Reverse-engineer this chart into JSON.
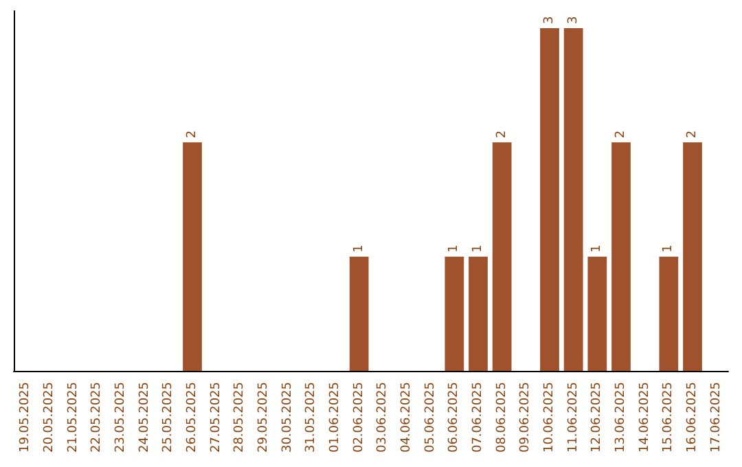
{
  "chart_data": {
    "type": "bar",
    "categories": [
      "19.05.2025",
      "20.05.2025",
      "21.05.2025",
      "22.05.2025",
      "23.05.2025",
      "24.05.2025",
      "25.05.2025",
      "26.05.2025",
      "27.05.2025",
      "28.05.2025",
      "29.05.2025",
      "30.05.2025",
      "31.05.2025",
      "01.06.2025",
      "02.06.2025",
      "03.06.2025",
      "04.06.2025",
      "05.06.2025",
      "06.06.2025",
      "07.06.2025",
      "08.06.2025",
      "09.06.2025",
      "10.06.2025",
      "11.06.2025",
      "12.06.2025",
      "13.06.2025",
      "14.06.2025",
      "15.06.2025",
      "16.06.2025",
      "17.06.2025"
    ],
    "values": [
      0,
      0,
      0,
      0,
      0,
      0,
      0,
      2,
      0,
      0,
      0,
      0,
      0,
      0,
      1,
      0,
      0,
      0,
      1,
      1,
      2,
      0,
      3,
      3,
      1,
      2,
      0,
      1,
      2,
      0
    ],
    "value_labels": [
      null,
      null,
      null,
      null,
      null,
      null,
      null,
      "2",
      null,
      null,
      null,
      null,
      null,
      null,
      "1",
      null,
      null,
      null,
      "1",
      "1",
      "2",
      null,
      "3",
      "3",
      "1",
      "2",
      null,
      "1",
      "2",
      null
    ],
    "color": "#a0522d",
    "tick_labels": "x"
  }
}
